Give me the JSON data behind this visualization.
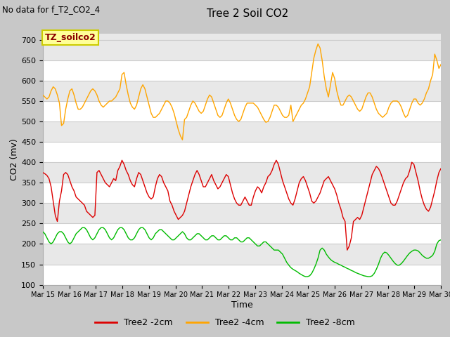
{
  "title": "Tree 2 Soil CO2",
  "subtitle": "No data for f_T2_CO2_4",
  "ylabel": "CO2 (mv)",
  "xlabel": "Time",
  "ylim": [
    100,
    715
  ],
  "yticks": [
    100,
    150,
    200,
    250,
    300,
    350,
    400,
    450,
    500,
    550,
    600,
    650,
    700
  ],
  "xtick_labels": [
    "Mar 15",
    "Mar 16",
    "Mar 17",
    "Mar 18",
    "Mar 19",
    "Mar 20",
    "Mar 21",
    "Mar 22",
    "Mar 23",
    "Mar 24",
    "Mar 25",
    "Mar 26",
    "Mar 27",
    "Mar 28",
    "Mar 29",
    "Mar 30"
  ],
  "legend_box_label": "TZ_soilco2",
  "legend_box_color": "#FFFF99",
  "legend_box_text_color": "#8B0000",
  "legend_box_edge_color": "#CCCC00",
  "line_colors": [
    "#FF0000",
    "#FFA500",
    "#00CC00"
  ],
  "line_labels": [
    "Tree2 -2cm",
    "Tree2 -4cm",
    "Tree2 -8cm"
  ],
  "fig_bg_color": "#C8C8C8",
  "plot_bg_color": "#E8E8E8",
  "band_color": "#D0D0D0",
  "red_data_y": [
    375,
    372,
    368,
    360,
    340,
    305,
    270,
    255,
    305,
    330,
    370,
    375,
    370,
    355,
    340,
    330,
    315,
    310,
    305,
    300,
    295,
    280,
    275,
    270,
    265,
    270,
    375,
    380,
    370,
    360,
    350,
    345,
    340,
    350,
    360,
    355,
    380,
    390,
    405,
    395,
    380,
    370,
    355,
    345,
    340,
    360,
    375,
    370,
    355,
    340,
    325,
    315,
    310,
    315,
    340,
    360,
    370,
    365,
    350,
    340,
    330,
    305,
    295,
    280,
    270,
    260,
    265,
    270,
    280,
    300,
    320,
    340,
    355,
    370,
    380,
    370,
    355,
    340,
    340,
    350,
    360,
    370,
    355,
    345,
    335,
    340,
    350,
    360,
    370,
    365,
    345,
    325,
    310,
    300,
    295,
    295,
    305,
    315,
    305,
    295,
    295,
    315,
    330,
    340,
    335,
    325,
    340,
    350,
    365,
    370,
    380,
    395,
    405,
    395,
    375,
    355,
    340,
    325,
    310,
    300,
    295,
    310,
    330,
    350,
    360,
    365,
    355,
    340,
    325,
    305,
    300,
    305,
    315,
    325,
    340,
    355,
    360,
    365,
    355,
    345,
    335,
    320,
    300,
    285,
    265,
    255,
    185,
    195,
    215,
    255,
    260,
    265,
    260,
    270,
    290,
    310,
    330,
    350,
    370,
    380,
    390,
    385,
    375,
    360,
    345,
    330,
    315,
    300,
    295,
    295,
    305,
    320,
    335,
    350,
    360,
    365,
    380,
    400,
    395,
    375,
    355,
    330,
    310,
    295,
    285,
    280,
    290,
    310,
    330,
    355,
    375,
    385
  ],
  "orange_data_y": [
    565,
    560,
    555,
    560,
    575,
    585,
    580,
    565,
    545,
    490,
    495,
    530,
    555,
    575,
    580,
    565,
    545,
    530,
    530,
    535,
    545,
    555,
    565,
    575,
    580,
    575,
    565,
    550,
    540,
    535,
    540,
    545,
    550,
    550,
    555,
    560,
    570,
    580,
    615,
    620,
    590,
    565,
    545,
    535,
    530,
    540,
    560,
    580,
    590,
    580,
    560,
    540,
    520,
    510,
    510,
    515,
    520,
    530,
    540,
    550,
    550,
    545,
    535,
    520,
    500,
    480,
    465,
    455,
    505,
    510,
    525,
    540,
    550,
    545,
    535,
    525,
    520,
    525,
    540,
    555,
    565,
    560,
    545,
    530,
    515,
    510,
    515,
    530,
    545,
    555,
    545,
    530,
    515,
    505,
    500,
    505,
    520,
    535,
    545,
    545,
    545,
    545,
    540,
    535,
    525,
    515,
    505,
    498,
    500,
    510,
    525,
    540,
    540,
    535,
    525,
    515,
    510,
    510,
    515,
    540,
    500,
    510,
    520,
    530,
    540,
    545,
    555,
    570,
    585,
    620,
    655,
    675,
    690,
    680,
    650,
    610,
    580,
    560,
    590,
    620,
    605,
    575,
    555,
    540,
    540,
    550,
    560,
    565,
    560,
    550,
    540,
    530,
    525,
    530,
    545,
    560,
    570,
    570,
    560,
    545,
    530,
    520,
    515,
    510,
    515,
    520,
    535,
    545,
    550,
    550,
    550,
    545,
    535,
    520,
    510,
    515,
    530,
    545,
    555,
    555,
    545,
    540,
    545,
    555,
    570,
    580,
    600,
    615,
    665,
    650,
    630,
    640
  ],
  "green_data_y": [
    230,
    225,
    215,
    205,
    200,
    205,
    215,
    225,
    230,
    230,
    225,
    215,
    205,
    200,
    205,
    215,
    225,
    230,
    235,
    240,
    240,
    235,
    225,
    215,
    210,
    215,
    225,
    235,
    240,
    240,
    235,
    225,
    215,
    210,
    215,
    225,
    235,
    240,
    240,
    235,
    225,
    215,
    210,
    210,
    215,
    225,
    235,
    240,
    240,
    235,
    225,
    215,
    210,
    215,
    225,
    230,
    235,
    235,
    230,
    225,
    220,
    215,
    210,
    210,
    215,
    220,
    225,
    230,
    225,
    215,
    210,
    210,
    215,
    220,
    225,
    225,
    220,
    215,
    210,
    210,
    215,
    220,
    220,
    215,
    210,
    210,
    215,
    220,
    220,
    215,
    210,
    210,
    215,
    215,
    210,
    205,
    205,
    210,
    215,
    215,
    210,
    205,
    200,
    195,
    195,
    200,
    205,
    205,
    200,
    195,
    190,
    185,
    185,
    185,
    180,
    175,
    165,
    155,
    148,
    142,
    138,
    135,
    132,
    128,
    125,
    122,
    120,
    120,
    122,
    128,
    138,
    150,
    165,
    185,
    190,
    185,
    175,
    168,
    162,
    158,
    155,
    153,
    150,
    148,
    145,
    143,
    140,
    138,
    135,
    133,
    130,
    128,
    126,
    124,
    122,
    121,
    120,
    120,
    122,
    128,
    138,
    150,
    165,
    175,
    180,
    178,
    172,
    165,
    158,
    152,
    148,
    148,
    152,
    158,
    165,
    172,
    178,
    182,
    185,
    185,
    183,
    178,
    172,
    168,
    165,
    165,
    168,
    172,
    182,
    200,
    208,
    210
  ]
}
